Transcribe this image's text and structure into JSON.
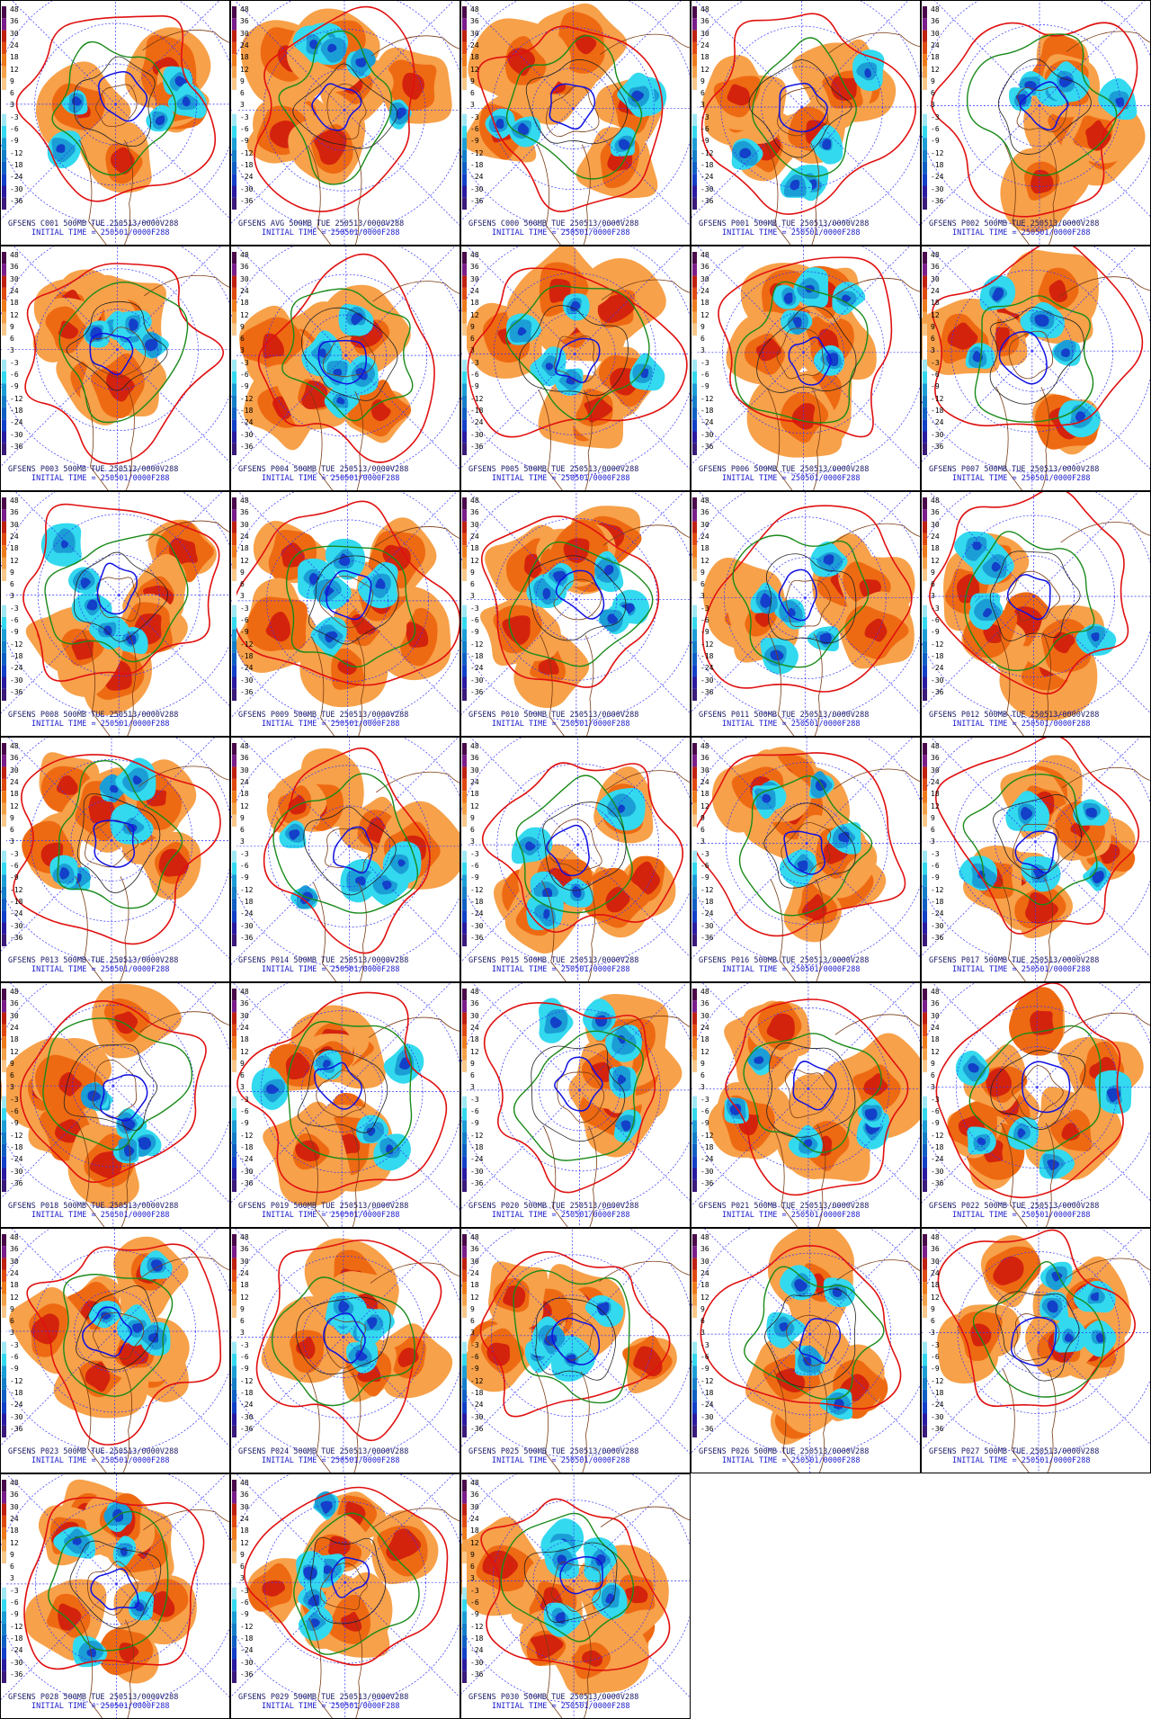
{
  "caption_line2": "INITIAL TIME = 250501/0000F288",
  "caption_suffix": "500MB TUE 250513/0000V288",
  "colorbar_ticks": [
    "48",
    "36",
    "30",
    "24",
    "18",
    "12",
    "9",
    "6",
    "3",
    "-3",
    "-6",
    "-9",
    "-12",
    "-18",
    "-24",
    "-30",
    "-36"
  ],
  "colors": {
    "warm_light": "#f7a14a",
    "warm_mid": "#ee6a12",
    "warm_dark": "#d4230d",
    "cold_light": "#33d9ee",
    "cold_mid": "#1b9ed6",
    "cold_dark": "#1240c8",
    "contour_red": "#e01010",
    "contour_green": "#1a8a1a",
    "contour_blue": "#1010e0",
    "contour_black": "#222222",
    "coast": "#7a3b14",
    "latlon": "#3030ff"
  },
  "panels": [
    {
      "member": "GFSENS C001"
    },
    {
      "member": "GFSENS AVG"
    },
    {
      "member": "GFSENS C000"
    },
    {
      "member": "GFSENS P001"
    },
    {
      "member": "GFSENS P002"
    },
    {
      "member": "GFSENS P003"
    },
    {
      "member": "GFSENS P004"
    },
    {
      "member": "GFSENS P005"
    },
    {
      "member": "GFSENS P006"
    },
    {
      "member": "GFSENS P007"
    },
    {
      "member": "GFSENS P008"
    },
    {
      "member": "GFSENS P009"
    },
    {
      "member": "GFSENS P010"
    },
    {
      "member": "GFSENS P011"
    },
    {
      "member": "GFSENS P012"
    },
    {
      "member": "GFSENS P013"
    },
    {
      "member": "GFSENS P014"
    },
    {
      "member": "GFSENS P015"
    },
    {
      "member": "GFSENS P016"
    },
    {
      "member": "GFSENS P017"
    },
    {
      "member": "GFSENS P018"
    },
    {
      "member": "GFSENS P019"
    },
    {
      "member": "GFSENS P020"
    },
    {
      "member": "GFSENS P021"
    },
    {
      "member": "GFSENS P022"
    },
    {
      "member": "GFSENS P023"
    },
    {
      "member": "GFSENS P024"
    },
    {
      "member": "GFSENS P025"
    },
    {
      "member": "GFSENS P026"
    },
    {
      "member": "GFSENS P027"
    },
    {
      "member": "GFSENS P028"
    },
    {
      "member": "GFSENS P029"
    },
    {
      "member": "GFSENS P030"
    }
  ]
}
